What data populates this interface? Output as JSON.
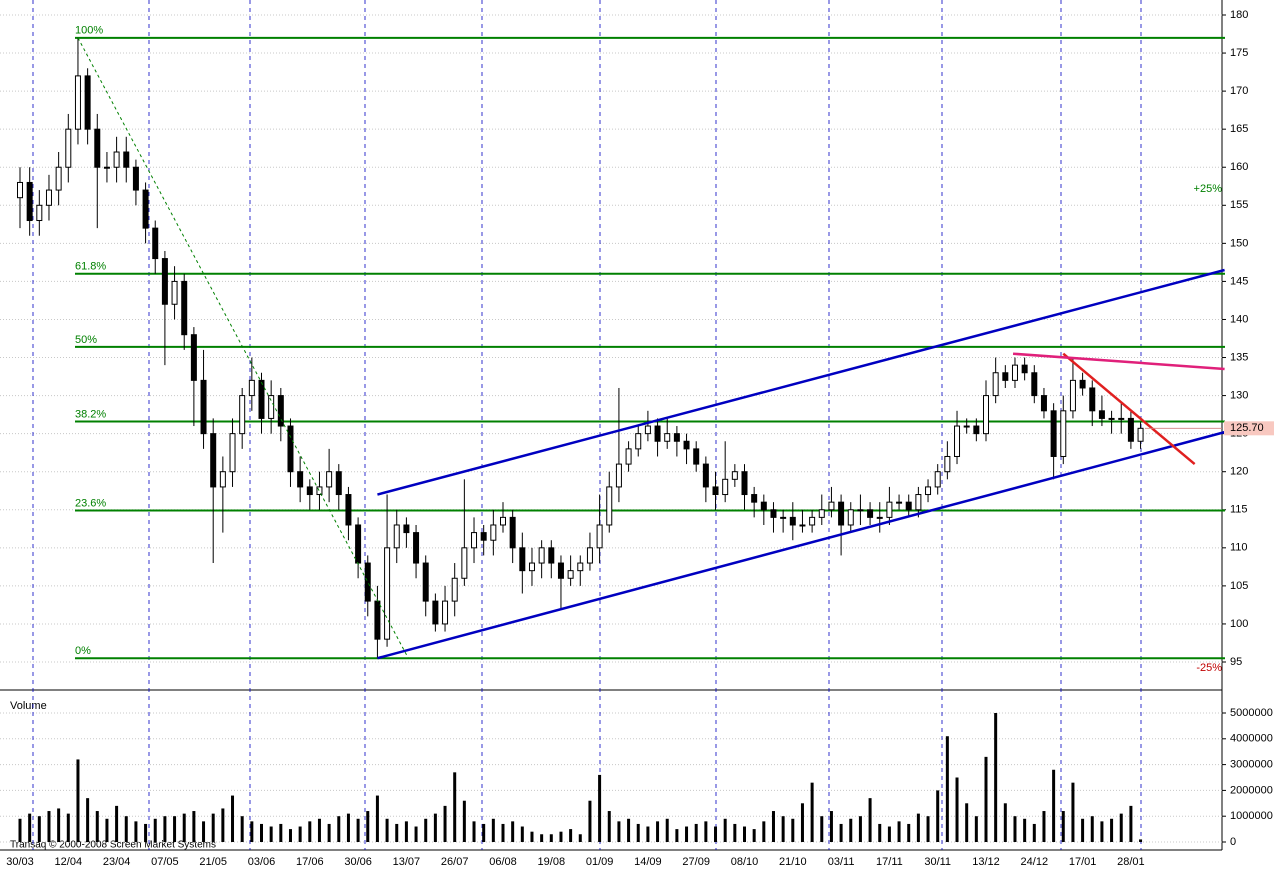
{
  "chart_data": {
    "type": "candlestick",
    "watermark": "Transaq © 2000-2008 Screen Market Systems",
    "volume_label": "Volume",
    "categories": [
      "30/03",
      null,
      null,
      null,
      null,
      "12/04",
      null,
      null,
      null,
      null,
      "23/04",
      null,
      null,
      null,
      null,
      "07/05",
      null,
      null,
      null,
      null,
      "21/05",
      null,
      null,
      null,
      null,
      "03/06",
      null,
      null,
      null,
      null,
      "17/06",
      null,
      null,
      null,
      null,
      "30/06",
      null,
      null,
      null,
      null,
      "13/07",
      null,
      null,
      null,
      null,
      "26/07",
      null,
      null,
      null,
      null,
      "06/08",
      null,
      null,
      null,
      null,
      "19/08",
      null,
      null,
      null,
      null,
      "01/09",
      null,
      null,
      null,
      null,
      "14/09",
      null,
      null,
      null,
      null,
      "27/09",
      null,
      null,
      null,
      null,
      "08/10",
      null,
      null,
      null,
      null,
      "21/10",
      null,
      null,
      null,
      null,
      "03/11",
      null,
      null,
      null,
      null,
      "17/11",
      null,
      null,
      null,
      null,
      "30/11",
      null,
      null,
      null,
      null,
      "13/12",
      null,
      null,
      null,
      null,
      "24/12",
      null,
      null,
      null,
      null,
      "17/01",
      null,
      null,
      null,
      null,
      "28/01",
      null
    ],
    "open": [
      156,
      158,
      153,
      155,
      157,
      160,
      165,
      172,
      165,
      160,
      160,
      162,
      160,
      157,
      152,
      148,
      142,
      145,
      138,
      132,
      125,
      118,
      120,
      125,
      130,
      132,
      127,
      130,
      126,
      120,
      118,
      117,
      118,
      120,
      117,
      113,
      108,
      103,
      98,
      110,
      113,
      112,
      108,
      103,
      100,
      103,
      106,
      110,
      112,
      111,
      113,
      114,
      110,
      107,
      108,
      110,
      108,
      106,
      107,
      108,
      110,
      113,
      118,
      121,
      123,
      125,
      126,
      124,
      125,
      124,
      123,
      121,
      118,
      117,
      119,
      120,
      117,
      116,
      115,
      114,
      114,
      113,
      113,
      114,
      115,
      116,
      113,
      115,
      115,
      114,
      114,
      116,
      116,
      115,
      117,
      118,
      120,
      122,
      126,
      126,
      125,
      130,
      133,
      132,
      134,
      133,
      130,
      128,
      122,
      128,
      132,
      131,
      128,
      127,
      127,
      127,
      124
    ],
    "high": [
      160,
      160,
      157,
      159,
      162,
      167,
      177,
      173,
      167,
      162,
      164,
      164,
      161,
      158,
      153,
      149,
      147,
      146,
      139,
      136,
      127,
      122,
      127,
      131,
      135,
      133,
      132,
      131,
      127,
      122,
      119,
      120,
      123,
      121,
      118,
      114,
      109,
      105,
      117,
      115,
      114,
      113,
      109,
      104,
      105,
      108,
      119,
      114,
      113,
      115,
      116,
      115,
      112,
      110,
      111,
      111,
      109,
      109,
      109,
      112,
      117,
      120,
      131,
      124,
      126,
      128,
      127,
      127,
      126,
      125,
      124,
      122,
      120,
      124,
      121,
      121,
      118,
      117,
      116,
      115,
      116,
      115,
      115,
      117,
      118,
      117,
      116,
      117,
      116,
      116,
      118,
      117,
      117,
      118,
      119,
      121,
      124,
      128,
      127,
      127,
      132,
      135,
      134,
      135,
      135,
      134,
      131,
      129,
      130,
      135,
      133,
      132,
      130,
      128,
      129,
      128,
      126.5
    ],
    "low": [
      152,
      151,
      151,
      153,
      155,
      158,
      163,
      163,
      152,
      158,
      158,
      158,
      155,
      150,
      146,
      134,
      140,
      136,
      126,
      123,
      108,
      112,
      118,
      123,
      128,
      125,
      125,
      124,
      118,
      116,
      115,
      115,
      116,
      115,
      111,
      106,
      101,
      95.5,
      97,
      108,
      110,
      106,
      101,
      99,
      99,
      101,
      105,
      108,
      109,
      109,
      112,
      108,
      104,
      105,
      106,
      106,
      102,
      105,
      105,
      107,
      108,
      112,
      116,
      120,
      122,
      124,
      122,
      123,
      122,
      121,
      120,
      116,
      115,
      116,
      118,
      115,
      114,
      113,
      112,
      112,
      111,
      112,
      112,
      113,
      114,
      109,
      112,
      113,
      113,
      112,
      113,
      115,
      114,
      114,
      116,
      117,
      119,
      121,
      125,
      124,
      124,
      129,
      131,
      131,
      132,
      129,
      127,
      119,
      121,
      127,
      130,
      126,
      126,
      125,
      125,
      123,
      123
    ],
    "close": [
      158,
      153,
      155,
      157,
      160,
      165,
      172,
      165,
      160,
      160,
      162,
      160,
      157,
      152,
      148,
      142,
      145,
      138,
      132,
      125,
      118,
      120,
      125,
      130,
      132,
      127,
      130,
      126,
      120,
      118,
      117,
      118,
      120,
      117,
      113,
      108,
      103,
      98,
      110,
      113,
      112,
      108,
      103,
      100,
      103,
      106,
      110,
      112,
      111,
      113,
      114,
      110,
      107,
      108,
      110,
      108,
      106,
      107,
      108,
      110,
      113,
      118,
      121,
      123,
      125,
      126,
      124,
      125,
      124,
      123,
      121,
      118,
      117,
      119,
      120,
      117,
      116,
      115,
      114,
      114,
      113,
      113,
      114,
      115,
      116,
      113,
      115,
      115,
      114,
      114,
      116,
      116,
      115,
      117,
      118,
      120,
      122,
      126,
      126,
      125,
      130,
      133,
      132,
      134,
      133,
      130,
      128,
      122,
      128,
      132,
      131,
      128,
      127,
      127,
      127,
      124,
      125.7
    ],
    "volume": [
      900000,
      1100000,
      1000000,
      1200000,
      1300000,
      1100000,
      3200000,
      1700000,
      1200000,
      900000,
      1400000,
      1000000,
      800000,
      700000,
      900000,
      1000000,
      1000000,
      1100000,
      1200000,
      800000,
      1100000,
      1300000,
      1800000,
      1000000,
      800000,
      700000,
      600000,
      700000,
      500000,
      600000,
      800000,
      900000,
      700000,
      1000000,
      1100000,
      900000,
      1200000,
      1800000,
      900000,
      700000,
      800000,
      600000,
      900000,
      1100000,
      1400000,
      2700000,
      1600000,
      800000,
      700000,
      900000,
      700000,
      800000,
      600000,
      400000,
      300000,
      300000,
      400000,
      500000,
      300000,
      1600000,
      2600000,
      1200000,
      800000,
      900000,
      700000,
      600000,
      800000,
      900000,
      500000,
      600000,
      700000,
      800000,
      600000,
      900000,
      700000,
      600000,
      500000,
      800000,
      1200000,
      1000000,
      900000,
      1500000,
      2300000,
      1000000,
      1200000,
      700000,
      900000,
      1000000,
      1700000,
      700000,
      600000,
      800000,
      700000,
      1100000,
      1000000,
      2000000,
      4100000,
      2500000,
      1500000,
      1000000,
      3300000,
      5000000,
      1500000,
      1000000,
      900000,
      700000,
      1200000,
      2800000,
      1200000,
      2300000,
      900000,
      1000000,
      800000,
      900000,
      1100000,
      1400000,
      100000
    ],
    "ylim": [
      95,
      180
    ],
    "yticks": [
      95,
      100,
      105,
      110,
      115,
      120,
      125,
      130,
      135,
      140,
      145,
      150,
      155,
      160,
      165,
      170,
      175,
      180
    ],
    "vlim": [
      0,
      5000000
    ],
    "vticks": [
      0,
      1000000,
      2000000,
      3000000,
      4000000,
      5000000
    ],
    "grid": true,
    "up_color": "#ffffff",
    "down_color": "#000000",
    "levels_color": "#008000",
    "levels": [
      {
        "label": "100%",
        "value": 177
      },
      {
        "label": "61.8%",
        "value": 146
      },
      {
        "label": "50%",
        "value": 136.4
      },
      {
        "label": "38.2%",
        "value": 126.6
      },
      {
        "label": "23.6%",
        "value": 114.9
      },
      {
        "label": "0%",
        "value": 95.5
      }
    ],
    "trendlines": [
      {
        "color": "#0000c0",
        "x": [
          37,
          124.7
        ],
        "y": [
          95.5,
          125.2
        ]
      },
      {
        "color": "#0000c0",
        "x": [
          37,
          124.7
        ],
        "y": [
          117,
          146.5
        ]
      },
      {
        "color": "#e02020",
        "x": [
          108,
          121.6
        ],
        "y": [
          135.5,
          121
        ]
      },
      {
        "color": "#e0207a",
        "x": [
          102.8,
          124.7
        ],
        "y": [
          135.5,
          133.5
        ]
      },
      {
        "color": "#008000",
        "x": [
          6,
          40.2
        ],
        "y": [
          177,
          95.5
        ],
        "dashed": true
      }
    ],
    "annotations": [
      {
        "text": "+25%",
        "color": "#008000"
      },
      {
        "text": "-25%",
        "color": "#c00000"
      }
    ],
    "last_price": {
      "value": 125.7,
      "label": "125.70"
    }
  }
}
